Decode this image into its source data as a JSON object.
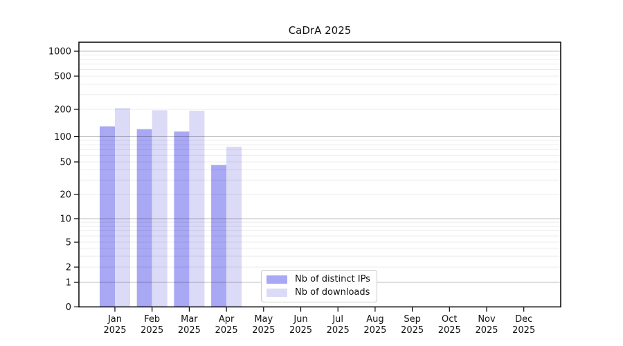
{
  "chart_data": {
    "type": "bar",
    "title": "CaDrA 2025",
    "categories": [
      "Jan",
      "Feb",
      "Mar",
      "Apr",
      "May",
      "Jun",
      "Jul",
      "Aug",
      "Sep",
      "Oct",
      "Nov",
      "Dec"
    ],
    "x_year": "2025",
    "series": [
      {
        "name": "Nb of distinct IPs",
        "color": "#a8a8f5",
        "values": [
          130,
          121,
          114,
          46,
          0,
          0,
          0,
          0,
          0,
          0,
          0,
          0
        ]
      },
      {
        "name": "Nb of downloads",
        "color": "#dbdbf8",
        "values": [
          207,
          195,
          193,
          76,
          0,
          0,
          0,
          0,
          0,
          0,
          0,
          0
        ]
      }
    ],
    "yticks": [
      0,
      1,
      2,
      5,
      10,
      20,
      50,
      100,
      200,
      500,
      1000
    ],
    "ylim": [
      0,
      1000
    ],
    "yscale": "symlog-1-2-5",
    "grid": true,
    "legend_position": "lower-center-inside"
  }
}
